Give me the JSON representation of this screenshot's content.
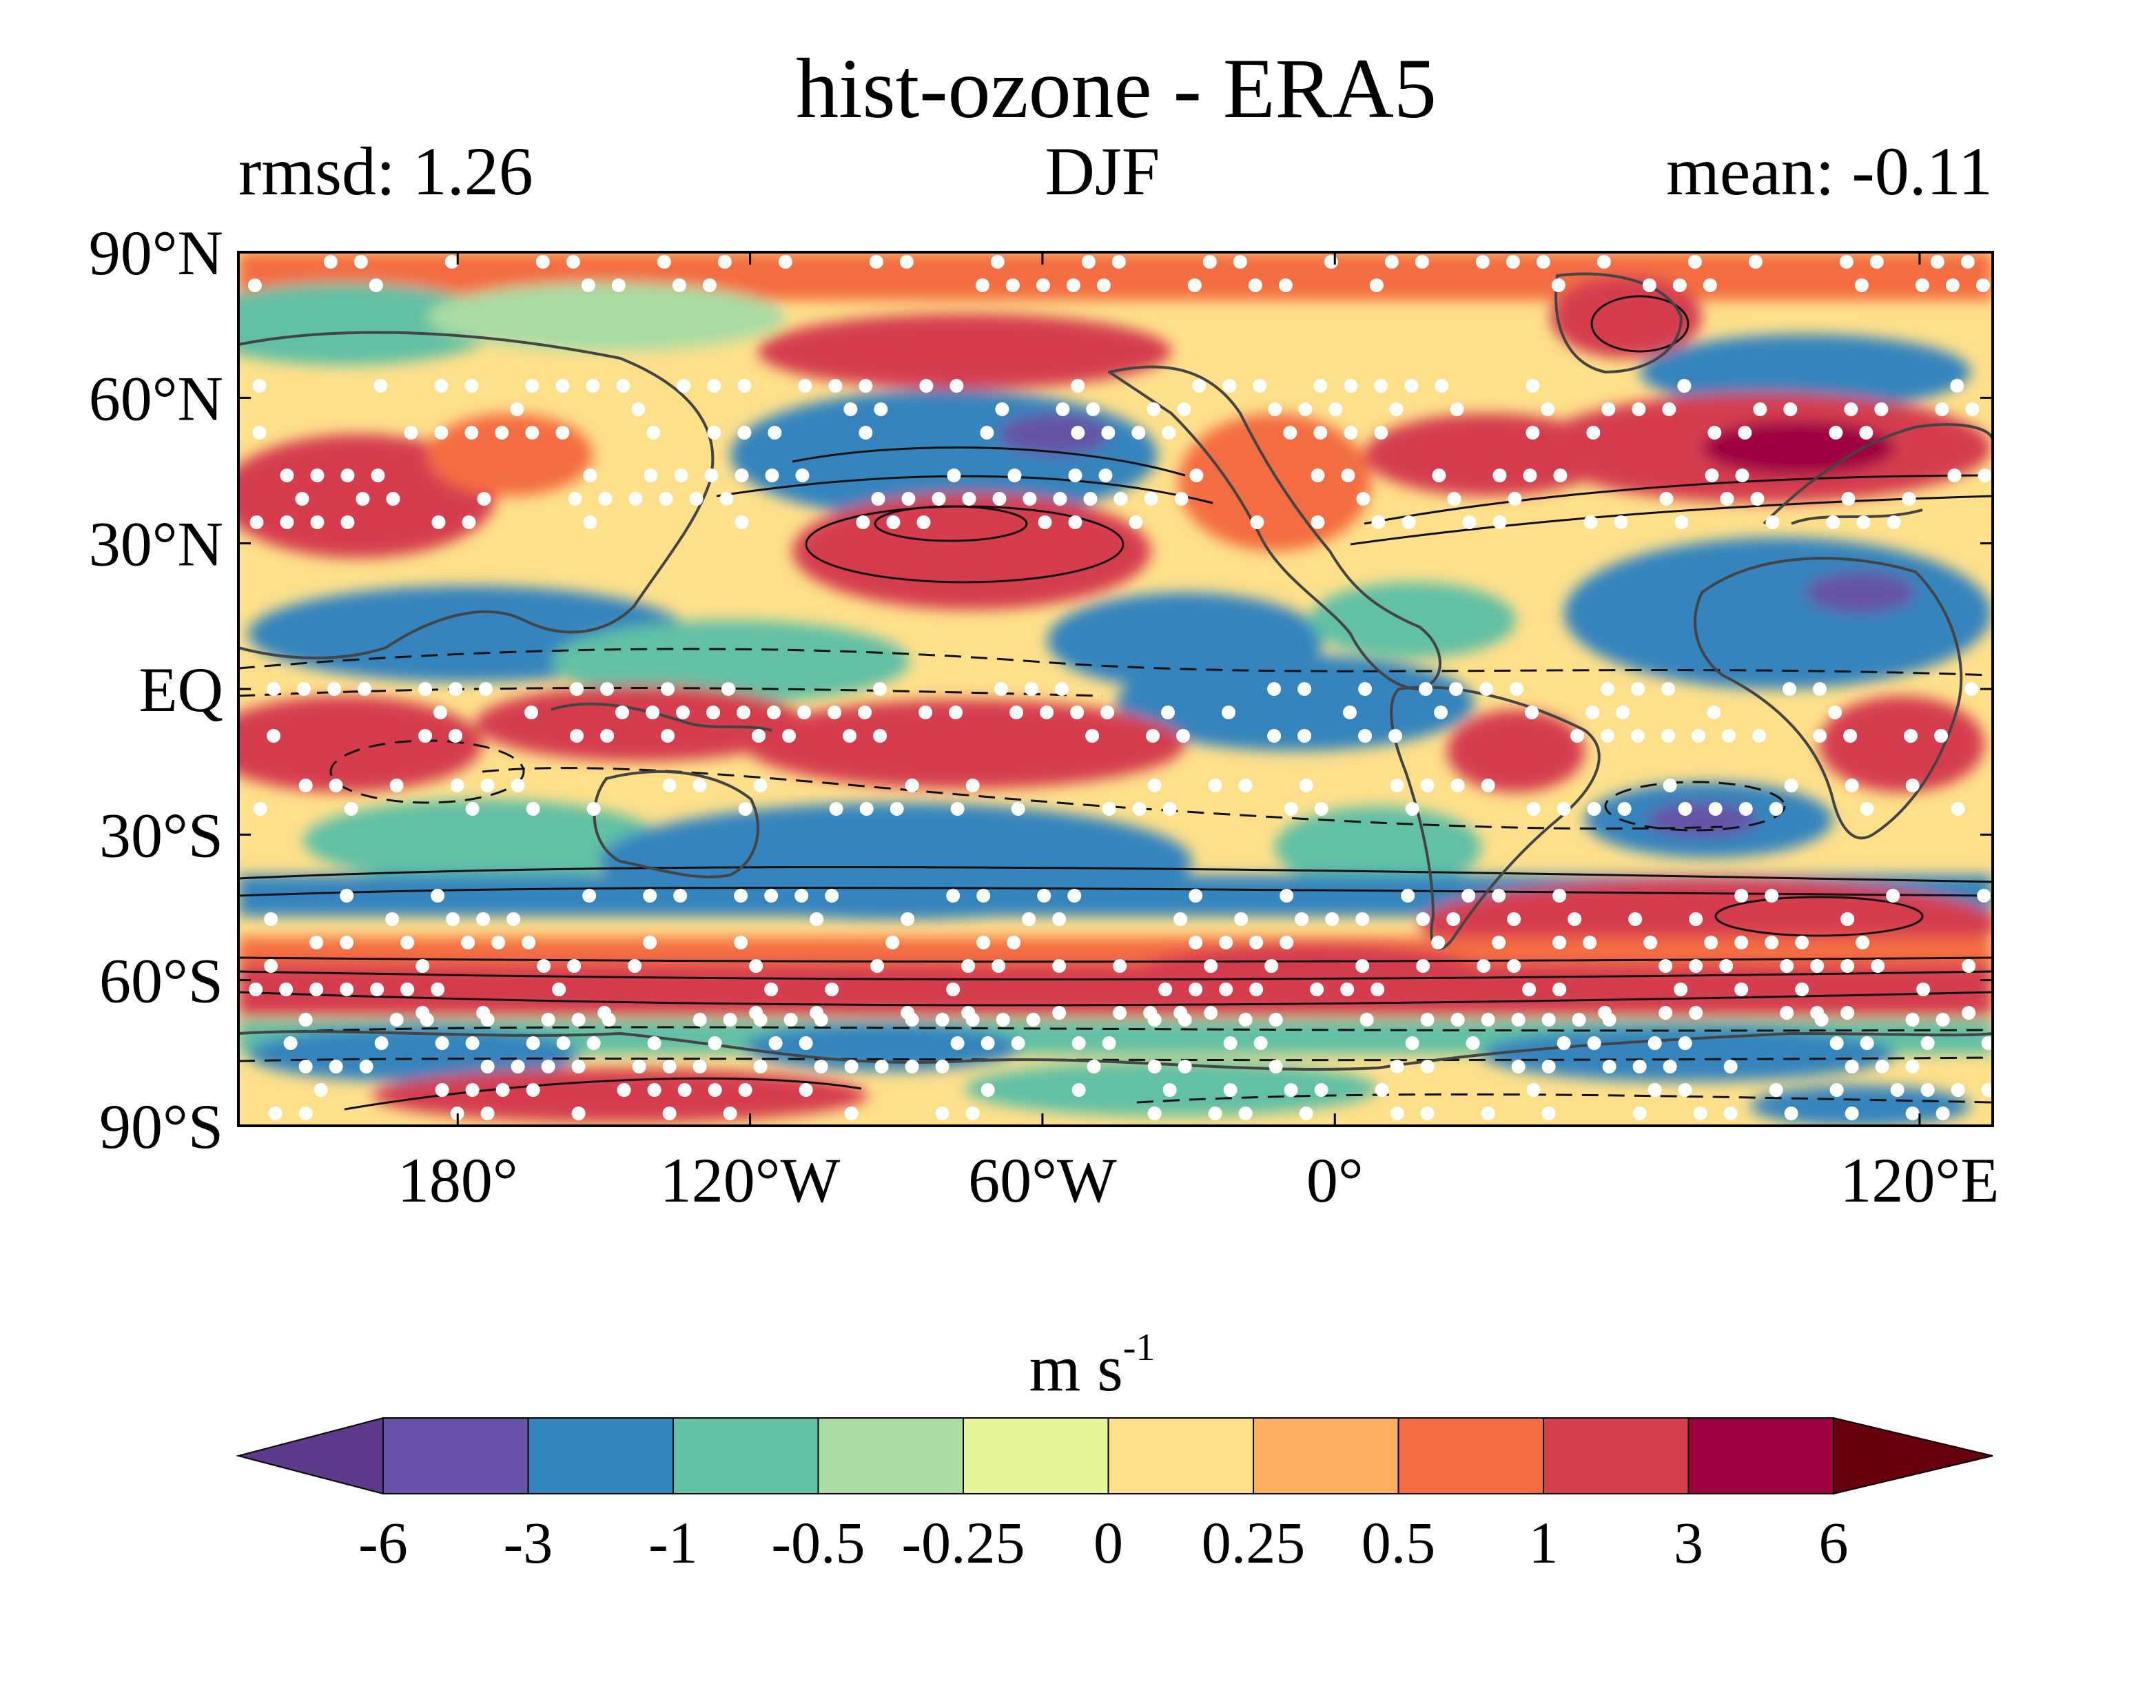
{
  "map": {
    "title": "hist-ozone - ERA5",
    "left_label": "rmsd: 1.26",
    "center_label": "DJF",
    "right_label": "mean: -0.11",
    "projection": "equirectangular",
    "lon_range": [
      -225,
      135
    ],
    "lat_range": [
      -90,
      90
    ],
    "lat_ticks": [
      {
        "value": 90,
        "label": "90°N"
      },
      {
        "value": 60,
        "label": "60°N"
      },
      {
        "value": 30,
        "label": "30°N"
      },
      {
        "value": 0,
        "label": "EQ"
      },
      {
        "value": -30,
        "label": "30°S"
      },
      {
        "value": -60,
        "label": "60°S"
      },
      {
        "value": -90,
        "label": "90°S"
      }
    ],
    "lon_ticks": [
      {
        "value": -240,
        "label": "120°E"
      },
      {
        "value": -180,
        "label": "180°"
      },
      {
        "value": -120,
        "label": "120°W"
      },
      {
        "value": -60,
        "label": "60°W"
      },
      {
        "value": 0,
        "label": "0°"
      }
    ],
    "overlays": [
      "filled-contours",
      "solid-contours",
      "dashed-contours",
      "coastlines",
      "stippling"
    ]
  },
  "colorbar": {
    "unit_base": "m s",
    "unit_exp": "-1",
    "levels": [
      "-6",
      "-3",
      "-1",
      "-0.5",
      "-0.25",
      "0",
      "0.25",
      "0.5",
      "1",
      "3",
      "6"
    ],
    "colors": [
      "#5d3a8c",
      "#6652a6",
      "#3484bd",
      "#62c0a5",
      "#aadca4",
      "#e6f598",
      "#fee08b",
      "#fdae61",
      "#f46d43",
      "#d53e4f",
      "#9e0142",
      "#67000d"
    ],
    "extend": "both"
  }
}
